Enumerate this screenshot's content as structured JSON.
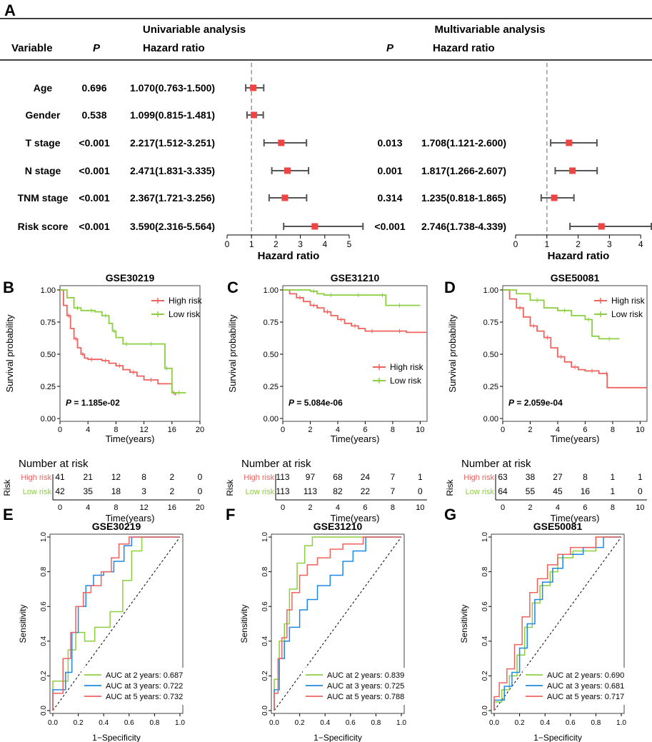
{
  "panel_letters": {
    "A": "A",
    "B": "B",
    "C": "C",
    "D": "D",
    "E": "E",
    "F": "F",
    "G": "G"
  },
  "forest": {
    "uni_title": "Univariable analysis",
    "multi_title": "Multivariable analysis",
    "variable_header": "Variable",
    "p_header": "P",
    "hr_header": "Hazard ratio",
    "axis_label": "Hazard ratio",
    "uni_ticks": [
      "0",
      "1",
      "2",
      "3",
      "4",
      "5"
    ],
    "multi_ticks": [
      "0",
      "1",
      "2",
      "3",
      "4"
    ],
    "rows": [
      {
        "variable": "Age",
        "uni_p": "0.696",
        "uni_hr_text": "1.070(0.763-1.500)",
        "multi_p": "",
        "multi_hr_text": ""
      },
      {
        "variable": "Gender",
        "uni_p": "0.538",
        "uni_hr_text": "1.099(0.815-1.481)",
        "multi_p": "",
        "multi_hr_text": ""
      },
      {
        "variable": "T stage",
        "uni_p": "<0.001",
        "uni_hr_text": "2.217(1.512-3.251)",
        "multi_p": "0.013",
        "multi_hr_text": "1.708(1.121-2.600)"
      },
      {
        "variable": "N stage",
        "uni_p": "<0.001",
        "uni_hr_text": "2.471(1.831-3.335)",
        "multi_p": "0.001",
        "multi_hr_text": "1.817(1.266-2.607)"
      },
      {
        "variable": "TNM stage",
        "uni_p": "<0.001",
        "uni_hr_text": "2.367(1.721-3.256)",
        "multi_p": "0.314",
        "multi_hr_text": "1.235(0.818-1.865)"
      },
      {
        "variable": "Risk score",
        "uni_p": "<0.001",
        "uni_hr_text": "3.590(2.316-5.564)",
        "multi_p": "<0.001",
        "multi_hr_text": "2.746(1.738-4.339)"
      }
    ]
  },
  "colors": {
    "high": "#f0625e",
    "low": "#8ccf3f",
    "auc2": "#8ccf3f",
    "auc3": "#1e88e5",
    "auc5": "#f0625e",
    "marker": "#ee4444",
    "ci": "#555555",
    "ref": "#999999",
    "axis": "#333333"
  },
  "km_common": {
    "ylabel": "Survival probability",
    "xlabel": "Time(years)",
    "nar_title": "Number at risk",
    "risk_label": "Risk",
    "high_label": "High risk",
    "low_label": "Low risk",
    "yticks": [
      "0.00",
      "0.25",
      "0.50",
      "0.75",
      "1.00"
    ],
    "p_prefix": "P"
  },
  "roc_common": {
    "xlabel": "1−Specificity",
    "ylabel": "Sensitivity",
    "ticks": [
      "0.0",
      "0.2",
      "0.4",
      "0.6",
      "0.8",
      "1.0"
    ],
    "legend_prefix": [
      "AUC at 2 years: ",
      "AUC at 3 years: ",
      "AUC at 5 years: "
    ]
  },
  "chart_data": [
    {
      "type": "forest",
      "title": "Univariable analysis",
      "x": "Hazard ratio",
      "xlim": [
        0,
        5
      ],
      "ref": 1,
      "series": [
        {
          "variable": "Age",
          "hr": 1.07,
          "lo": 0.763,
          "hi": 1.5
        },
        {
          "variable": "Gender",
          "hr": 1.099,
          "lo": 0.815,
          "hi": 1.481
        },
        {
          "variable": "T stage",
          "hr": 2.217,
          "lo": 1.512,
          "hi": 3.251
        },
        {
          "variable": "N stage",
          "hr": 2.471,
          "lo": 1.831,
          "hi": 3.335
        },
        {
          "variable": "TNM stage",
          "hr": 2.367,
          "lo": 1.721,
          "hi": 3.256
        },
        {
          "variable": "Risk score",
          "hr": 3.59,
          "lo": 2.316,
          "hi": 5.564
        }
      ]
    },
    {
      "type": "forest",
      "title": "Multivariable analysis",
      "x": "Hazard ratio",
      "xlim": [
        0,
        4
      ],
      "ref": 1,
      "series": [
        {
          "variable": "T stage",
          "hr": 1.708,
          "lo": 1.121,
          "hi": 2.6
        },
        {
          "variable": "N stage",
          "hr": 1.817,
          "lo": 1.266,
          "hi": 2.607
        },
        {
          "variable": "TNM stage",
          "hr": 1.235,
          "lo": 0.818,
          "hi": 1.865
        },
        {
          "variable": "Risk score",
          "hr": 2.746,
          "lo": 1.738,
          "hi": 4.339
        }
      ]
    },
    {
      "type": "line",
      "title": "GSE30219",
      "xlim": [
        0,
        20
      ],
      "xticks": [
        "0",
        "4",
        "8",
        "12",
        "16",
        "20"
      ],
      "p_value": "1.185e-02",
      "legend_pos": "top-right",
      "series": [
        {
          "name": "High risk",
          "x": [
            0,
            0.5,
            1,
            1.5,
            2,
            2.5,
            3,
            3.5,
            4,
            5,
            6,
            7,
            8,
            9,
            10,
            11,
            12,
            14,
            16,
            16.5
          ],
          "y": [
            1.0,
            0.88,
            0.8,
            0.7,
            0.62,
            0.55,
            0.5,
            0.47,
            0.46,
            0.46,
            0.45,
            0.43,
            0.41,
            0.38,
            0.36,
            0.33,
            0.3,
            0.27,
            0.2,
            0.18
          ]
        },
        {
          "name": "Low risk",
          "x": [
            0,
            1,
            2,
            3,
            4,
            5,
            6,
            7,
            7.5,
            8,
            9,
            10,
            12,
            14,
            15,
            15.5,
            16,
            18
          ],
          "y": [
            1.0,
            0.94,
            0.86,
            0.84,
            0.84,
            0.83,
            0.8,
            0.74,
            0.68,
            0.63,
            0.58,
            0.58,
            0.58,
            0.58,
            0.39,
            0.39,
            0.2,
            0.2
          ]
        }
      ],
      "nar": {
        "ticks": [
          "0",
          "4",
          "8",
          "12",
          "16",
          "20"
        ],
        "high": [
          "41",
          "21",
          "12",
          "8",
          "2",
          "0"
        ],
        "low": [
          "42",
          "35",
          "18",
          "3",
          "2",
          "0"
        ]
      }
    },
    {
      "type": "line",
      "title": "GSE31210",
      "xlim": [
        0,
        10.5
      ],
      "xticks": [
        "0",
        "2",
        "4",
        "6",
        "8",
        "10"
      ],
      "p_value": "5.084e-06",
      "legend_pos": "middle-right",
      "series": [
        {
          "name": "High risk",
          "x": [
            0,
            0.5,
            1,
            1.5,
            2,
            2.5,
            3,
            3.5,
            4,
            4.5,
            5,
            5.5,
            6,
            7,
            8,
            9,
            10.5
          ],
          "y": [
            1.0,
            0.97,
            0.94,
            0.91,
            0.88,
            0.86,
            0.83,
            0.8,
            0.77,
            0.74,
            0.72,
            0.7,
            0.68,
            0.68,
            0.68,
            0.67,
            0.67
          ]
        },
        {
          "name": "Low risk",
          "x": [
            0,
            1,
            2,
            2.5,
            3,
            4,
            5,
            6,
            7,
            7.5,
            8,
            9,
            10
          ],
          "y": [
            1.0,
            1.0,
            0.99,
            0.97,
            0.96,
            0.96,
            0.96,
            0.96,
            0.96,
            0.88,
            0.88,
            0.88,
            0.88
          ]
        }
      ],
      "nar": {
        "ticks": [
          "0",
          "2",
          "4",
          "6",
          "8",
          "10"
        ],
        "high": [
          "113",
          "97",
          "68",
          "24",
          "7",
          "1"
        ],
        "low": [
          "113",
          "113",
          "82",
          "22",
          "7",
          "0"
        ]
      }
    },
    {
      "type": "line",
      "title": "GSE50081",
      "xlim": [
        0,
        10.5
      ],
      "xticks": [
        "0",
        "2",
        "4",
        "6",
        "8",
        "10"
      ],
      "p_value": "2.059e-04",
      "legend_pos": "top-right",
      "series": [
        {
          "name": "High risk",
          "x": [
            0,
            0.5,
            1,
            1.5,
            2,
            2.5,
            3,
            3.5,
            4,
            4.5,
            5,
            5.5,
            6,
            7,
            7.5,
            7.6,
            10.5
          ],
          "y": [
            1.0,
            0.93,
            0.86,
            0.79,
            0.72,
            0.68,
            0.63,
            0.55,
            0.48,
            0.44,
            0.4,
            0.38,
            0.37,
            0.35,
            0.35,
            0.24,
            0.24
          ]
        },
        {
          "name": "Low risk",
          "x": [
            0,
            1,
            2,
            3,
            4,
            5,
            6,
            6.5,
            7,
            8.5
          ],
          "y": [
            1.0,
            0.97,
            0.92,
            0.86,
            0.84,
            0.8,
            0.77,
            0.64,
            0.62,
            0.62
          ]
        }
      ],
      "nar": {
        "ticks": [
          "0",
          "2",
          "4",
          "6",
          "8",
          "10"
        ],
        "high": [
          "63",
          "38",
          "27",
          "8",
          "1",
          "1"
        ],
        "low": [
          "64",
          "55",
          "45",
          "16",
          "1",
          "0"
        ]
      }
    },
    {
      "type": "line",
      "title": "GSE30219",
      "xlim": [
        0,
        1
      ],
      "ylim": [
        0,
        1
      ],
      "series": [
        {
          "name": "AUC at 2 years",
          "auc": "0.687",
          "x": [
            0,
            0,
            0.12,
            0.12,
            0.18,
            0.18,
            0.25,
            0.25,
            0.33,
            0.33,
            0.45,
            0.45,
            0.55,
            0.55,
            0.62,
            0.62,
            0.7,
            0.7,
            1
          ],
          "y": [
            0,
            0.17,
            0.17,
            0.35,
            0.35,
            0.45,
            0.45,
            0.4,
            0.4,
            0.48,
            0.48,
            0.57,
            0.57,
            0.75,
            0.75,
            0.92,
            0.92,
            1,
            1
          ]
        },
        {
          "name": "AUC at 3 years",
          "auc": "0.722",
          "x": [
            0,
            0,
            0.1,
            0.1,
            0.15,
            0.15,
            0.2,
            0.2,
            0.26,
            0.26,
            0.32,
            0.32,
            0.4,
            0.4,
            0.48,
            0.48,
            0.56,
            0.56,
            0.62,
            0.62,
            1
          ],
          "y": [
            0,
            0.12,
            0.12,
            0.22,
            0.22,
            0.45,
            0.45,
            0.6,
            0.6,
            0.72,
            0.72,
            0.78,
            0.78,
            0.8,
            0.8,
            0.86,
            0.86,
            0.95,
            0.95,
            1,
            1
          ]
        },
        {
          "name": "AUC at 5 years",
          "auc": "0.732",
          "x": [
            0,
            0,
            0.08,
            0.08,
            0.14,
            0.14,
            0.18,
            0.18,
            0.24,
            0.24,
            0.3,
            0.3,
            0.38,
            0.38,
            0.46,
            0.46,
            0.52,
            0.52,
            0.6,
            0.6,
            1
          ],
          "y": [
            0,
            0.1,
            0.1,
            0.3,
            0.3,
            0.45,
            0.45,
            0.6,
            0.6,
            0.68,
            0.68,
            0.72,
            0.72,
            0.8,
            0.8,
            0.88,
            0.88,
            0.96,
            0.96,
            1,
            1
          ]
        }
      ]
    },
    {
      "type": "line",
      "title": "GSE31210",
      "xlim": [
        0,
        1
      ],
      "ylim": [
        0,
        1
      ],
      "series": [
        {
          "name": "AUC at 2 years",
          "auc": "0.839",
          "x": [
            0,
            0,
            0.04,
            0.04,
            0.08,
            0.08,
            0.12,
            0.12,
            0.18,
            0.18,
            0.24,
            0.24,
            0.3,
            0.3,
            1
          ],
          "y": [
            0,
            0.18,
            0.18,
            0.4,
            0.4,
            0.5,
            0.5,
            0.7,
            0.7,
            0.85,
            0.85,
            0.95,
            0.95,
            1,
            1
          ]
        },
        {
          "name": "AUC at 3 years",
          "auc": "0.725",
          "x": [
            0,
            0,
            0.04,
            0.04,
            0.08,
            0.08,
            0.12,
            0.12,
            0.2,
            0.2,
            0.26,
            0.26,
            0.34,
            0.34,
            0.44,
            0.44,
            0.54,
            0.54,
            0.62,
            0.62,
            0.72,
            0.72,
            1
          ],
          "y": [
            0,
            0.12,
            0.12,
            0.3,
            0.3,
            0.4,
            0.4,
            0.48,
            0.48,
            0.58,
            0.58,
            0.64,
            0.64,
            0.72,
            0.72,
            0.78,
            0.78,
            0.86,
            0.86,
            0.92,
            0.92,
            1,
            1
          ]
        },
        {
          "name": "AUC at 5 years",
          "auc": "0.788",
          "x": [
            0,
            0,
            0.03,
            0.03,
            0.06,
            0.06,
            0.1,
            0.1,
            0.14,
            0.14,
            0.2,
            0.2,
            0.26,
            0.26,
            0.34,
            0.34,
            0.44,
            0.44,
            0.54,
            0.54,
            0.7,
            0.7,
            1
          ],
          "y": [
            0,
            0.1,
            0.1,
            0.3,
            0.3,
            0.42,
            0.42,
            0.58,
            0.58,
            0.68,
            0.68,
            0.78,
            0.78,
            0.84,
            0.84,
            0.88,
            0.88,
            0.93,
            0.93,
            0.96,
            0.96,
            1,
            1
          ]
        }
      ]
    },
    {
      "type": "line",
      "title": "GSE50081",
      "xlim": [
        0,
        1
      ],
      "ylim": [
        0,
        1
      ],
      "series": [
        {
          "name": "AUC at 2 years",
          "auc": "0.690",
          "x": [
            0,
            0,
            0.06,
            0.06,
            0.12,
            0.12,
            0.18,
            0.18,
            0.24,
            0.24,
            0.3,
            0.3,
            0.36,
            0.36,
            0.44,
            0.44,
            0.5,
            0.5,
            0.62,
            0.62,
            0.8,
            0.8,
            1
          ],
          "y": [
            0,
            0.05,
            0.05,
            0.12,
            0.12,
            0.2,
            0.2,
            0.32,
            0.32,
            0.48,
            0.48,
            0.62,
            0.62,
            0.72,
            0.72,
            0.8,
            0.8,
            0.88,
            0.88,
            0.92,
            0.92,
            1,
            1
          ]
        },
        {
          "name": "AUC at 3 years",
          "auc": "0.681",
          "x": [
            0,
            0,
            0.08,
            0.08,
            0.14,
            0.14,
            0.2,
            0.2,
            0.26,
            0.26,
            0.32,
            0.32,
            0.38,
            0.38,
            0.46,
            0.46,
            0.54,
            0.54,
            0.7,
            0.7,
            0.86,
            0.86,
            1
          ],
          "y": [
            0,
            0.06,
            0.06,
            0.14,
            0.14,
            0.22,
            0.22,
            0.36,
            0.36,
            0.5,
            0.5,
            0.64,
            0.64,
            0.74,
            0.74,
            0.82,
            0.82,
            0.9,
            0.9,
            0.94,
            0.94,
            1,
            1
          ]
        },
        {
          "name": "AUC at 5 years",
          "auc": "0.717",
          "x": [
            0,
            0,
            0.04,
            0.04,
            0.1,
            0.1,
            0.16,
            0.16,
            0.22,
            0.22,
            0.28,
            0.28,
            0.34,
            0.34,
            0.42,
            0.42,
            0.5,
            0.5,
            0.6,
            0.6,
            0.8,
            0.8,
            1
          ],
          "y": [
            0,
            0.08,
            0.08,
            0.16,
            0.16,
            0.24,
            0.24,
            0.38,
            0.38,
            0.54,
            0.54,
            0.68,
            0.68,
            0.76,
            0.76,
            0.84,
            0.84,
            0.9,
            0.9,
            0.94,
            0.94,
            1,
            1
          ]
        }
      ]
    }
  ]
}
